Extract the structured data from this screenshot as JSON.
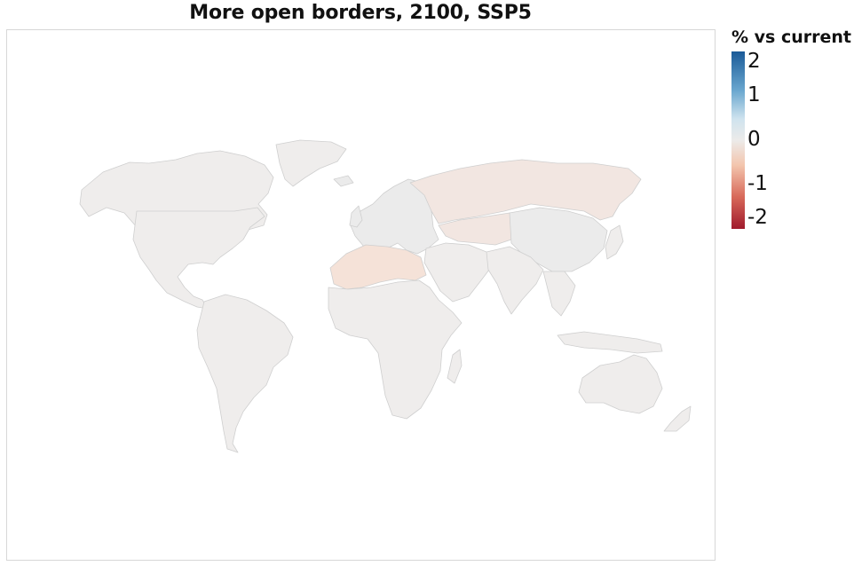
{
  "title": "More open borders, 2100, SSP5",
  "legend": {
    "title": "% vs current",
    "ticks": [
      {
        "label": "2",
        "value": 2
      },
      {
        "label": "1",
        "value": 1
      },
      {
        "label": "0",
        "value": 0
      },
      {
        "label": "-1",
        "value": -1
      },
      {
        "label": "-2",
        "value": -2
      }
    ],
    "colors": {
      "max": "#1a5a98",
      "high": "#6aa7cf",
      "light_blue": "#cfe3ee",
      "zero": "#ecebea",
      "light_red": "#f3c6ae",
      "low": "#d8695a",
      "min": "#a01a2c"
    }
  },
  "colors": {
    "country_default": "#efedec",
    "country_slightly_negative": "#f2e6e1",
    "country_more_negative": "#f5e2d8",
    "country_neutral_grey": "#ebebeb",
    "border": "#cfcfcf",
    "frame": "#d7d7d7"
  },
  "regions": [
    {
      "name": "north-america",
      "shade": "country_default"
    },
    {
      "name": "greenland",
      "shade": "country_default"
    },
    {
      "name": "south-america",
      "shade": "country_default"
    },
    {
      "name": "europe",
      "shade": "country_neutral_grey"
    },
    {
      "name": "russia",
      "shade": "country_slightly_negative"
    },
    {
      "name": "north-africa",
      "shade": "country_more_negative"
    },
    {
      "name": "africa",
      "shade": "country_default"
    },
    {
      "name": "middle-east",
      "shade": "country_default"
    },
    {
      "name": "central-asia",
      "shade": "country_slightly_negative"
    },
    {
      "name": "south-asia",
      "shade": "country_default"
    },
    {
      "name": "china",
      "shade": "country_neutral_grey"
    },
    {
      "name": "southeast-asia",
      "shade": "country_default"
    },
    {
      "name": "australia",
      "shade": "country_default"
    }
  ]
}
